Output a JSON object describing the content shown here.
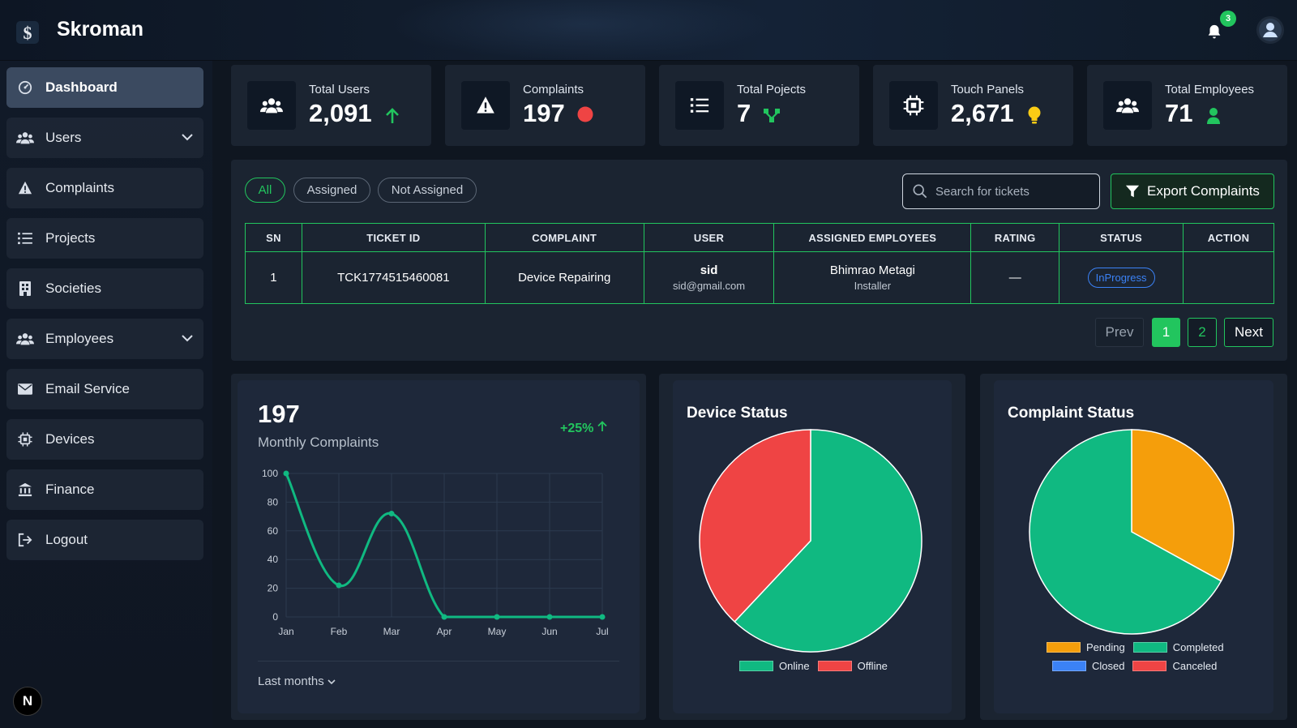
{
  "app": {
    "name": "Skroman"
  },
  "header": {
    "notifications_count": "3"
  },
  "sidebar": {
    "items": [
      {
        "label": "Dashboard",
        "icon": "dashboard-icon",
        "active": true
      },
      {
        "label": "Users",
        "icon": "users-icon",
        "expandable": true
      },
      {
        "label": "Complaints",
        "icon": "warning-icon"
      },
      {
        "label": "Projects",
        "icon": "list-icon"
      },
      {
        "label": "Societies",
        "icon": "building-icon"
      },
      {
        "label": "Employees",
        "icon": "users-icon",
        "expandable": true
      },
      {
        "label": "Email Service",
        "icon": "mail-icon"
      },
      {
        "label": "Devices",
        "icon": "chip-icon"
      },
      {
        "label": "Finance",
        "icon": "bank-icon"
      },
      {
        "label": "Logout",
        "icon": "logout-icon"
      }
    ],
    "footer_badge": "N"
  },
  "stats": [
    {
      "label": "Total Users",
      "value": "2,091",
      "icon": "users-icon",
      "mini_icon": "arrow-up-icon",
      "mini_color": "#22c55e"
    },
    {
      "label": "Complaints",
      "value": "197",
      "icon": "warning-icon",
      "mini_icon": "red-dot-icon",
      "mini_color": "#ef4444"
    },
    {
      "label": "Total Pojects",
      "value": "7",
      "icon": "list-icon",
      "mini_icon": "branch-icon",
      "mini_color": "#22c55e"
    },
    {
      "label": "Touch Panels",
      "value": "2,671",
      "icon": "chip-icon",
      "mini_icon": "bulb-icon",
      "mini_color": "#facc15"
    },
    {
      "label": "Total Employees",
      "value": "71",
      "icon": "users-icon",
      "mini_icon": "person-icon",
      "mini_color": "#22c55e"
    }
  ],
  "tickets": {
    "filters": [
      "All",
      "Assigned",
      "Not Assigned"
    ],
    "active_filter": "All",
    "search_placeholder": "Search for tickets",
    "export_label": "Export Complaints",
    "columns": [
      "SN",
      "TICKET ID",
      "COMPLAINT",
      "USER",
      "ASSIGNED EMPLOYEES",
      "RATING",
      "STATUS",
      "ACTION"
    ],
    "rows": [
      {
        "sn": "1",
        "ticket_id": "TCK1774515460081",
        "complaint": "Device Repairing",
        "user_name": "sid",
        "user_email": "sid@gmail.com",
        "employee_name": "Bhimrao Metagi",
        "employee_role": "Installer",
        "rating": "—",
        "status": "InProgress",
        "action": ""
      }
    ],
    "pagination": {
      "prev": "Prev",
      "pages": [
        "1",
        "2"
      ],
      "current": "1",
      "next": "Next"
    }
  },
  "monthly": {
    "total": "197",
    "label": "Monthly Complaints",
    "growth": "+25%",
    "footer": "Last months"
  },
  "device_status": {
    "title": "Device Status"
  },
  "complaint_status": {
    "title": "Complaint Status"
  },
  "colors": {
    "accent": "#22c55e",
    "online": "#10b981",
    "offline": "#ef4444",
    "pending": "#f59e0b",
    "completed": "#10b981",
    "closed": "#3b82f6",
    "canceled": "#ef4444"
  },
  "chart_data": [
    {
      "type": "line",
      "x": [
        "Jan",
        "Feb",
        "Mar",
        "Apr",
        "May",
        "Jun",
        "Jul"
      ],
      "series": [
        {
          "values": [
            100,
            22,
            72,
            0,
            0,
            0,
            0
          ]
        }
      ],
      "ylim": [
        0,
        100
      ],
      "yticks": [
        0,
        20,
        40,
        60,
        80,
        100
      ],
      "grid": true
    },
    {
      "type": "pie",
      "title": "Device Status",
      "labels": [
        "Online",
        "Offline"
      ],
      "values": [
        62,
        38
      ],
      "colors": [
        "#10b981",
        "#ef4444"
      ],
      "legend": "bottom"
    },
    {
      "type": "pie",
      "title": "Complaint Status",
      "labels": [
        "Pending",
        "Completed",
        "Closed",
        "Canceled"
      ],
      "values": [
        33,
        67,
        0,
        0
      ],
      "colors": [
        "#f59e0b",
        "#10b981",
        "#3b82f6",
        "#ef4444"
      ],
      "legend": "bottom"
    }
  ]
}
